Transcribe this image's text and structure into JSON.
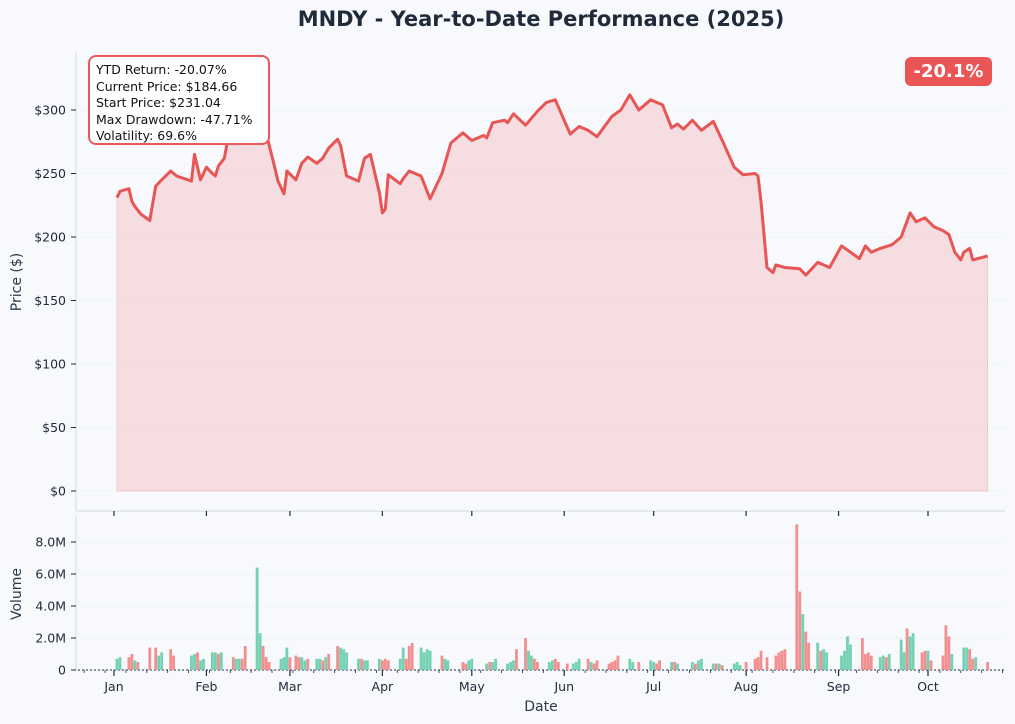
{
  "chart_data": [
    {
      "type": "area",
      "title": "MNDY - Year-to-Date Performance (2025)",
      "ylabel": "Price ($)",
      "ylim": [
        0,
        340
      ],
      "ytick_labels": [
        "$0",
        "$50",
        "$100",
        "$150",
        "$200",
        "$250",
        "$300"
      ],
      "yticks": [
        0,
        50,
        100,
        150,
        200,
        250,
        300
      ],
      "line_color": "#e85555",
      "fill_color": "#f4c6ca",
      "grid": true,
      "series": [
        {
          "x": [
            "2025-01-02",
            "2025-01-03",
            "2025-01-06",
            "2025-01-07",
            "2025-01-08",
            "2025-01-10",
            "2025-01-13",
            "2025-01-15",
            "2025-01-17",
            "2025-01-20",
            "2025-01-22",
            "2025-01-27",
            "2025-01-28",
            "2025-01-30",
            "2025-02-01",
            "2025-02-03",
            "2025-02-04",
            "2025-02-05",
            "2025-02-07",
            "2025-02-10",
            "2025-02-11",
            "2025-02-13",
            "2025-02-14",
            "2025-02-17",
            "2025-02-19",
            "2025-02-21",
            "2025-02-24",
            "2025-02-25",
            "2025-02-27",
            "2025-02-28",
            "2025-03-03",
            "2025-03-05",
            "2025-03-07",
            "2025-03-10",
            "2025-03-12",
            "2025-03-14",
            "2025-03-17",
            "2025-03-18",
            "2025-03-20",
            "2025-03-24",
            "2025-03-26",
            "2025-03-28",
            "2025-03-31",
            "2025-04-01",
            "2025-04-02",
            "2025-04-03",
            "2025-04-07",
            "2025-04-08",
            "2025-04-10",
            "2025-04-14",
            "2025-04-17",
            "2025-04-21",
            "2025-04-24",
            "2025-04-28",
            "2025-05-01",
            "2025-05-05",
            "2025-05-06",
            "2025-05-08",
            "2025-05-12",
            "2025-05-13",
            "2025-05-15",
            "2025-05-19",
            "2025-05-23",
            "2025-05-26",
            "2025-05-29",
            "2025-06-03",
            "2025-06-06",
            "2025-06-09",
            "2025-06-12",
            "2025-06-17",
            "2025-06-20",
            "2025-06-23",
            "2025-06-26",
            "2025-06-30",
            "2025-07-01",
            "2025-07-04",
            "2025-07-07",
            "2025-07-09",
            "2025-07-11",
            "2025-07-14",
            "2025-07-17",
            "2025-07-21",
            "2025-07-24",
            "2025-07-28",
            "2025-07-31",
            "2025-08-04",
            "2025-08-05",
            "2025-08-06",
            "2025-08-08",
            "2025-08-10",
            "2025-08-11",
            "2025-08-14",
            "2025-08-19",
            "2025-08-21",
            "2025-08-25",
            "2025-08-29",
            "2025-09-02",
            "2025-09-05",
            "2025-09-08",
            "2025-09-10",
            "2025-09-12",
            "2025-09-15",
            "2025-09-19",
            "2025-09-22",
            "2025-09-25",
            "2025-09-27",
            "2025-09-30",
            "2025-10-03",
            "2025-10-06",
            "2025-10-08",
            "2025-10-10",
            "2025-10-12",
            "2025-10-13",
            "2025-10-15",
            "2025-10-16",
            "2025-10-21"
          ],
          "y": [
            231.04,
            236,
            238,
            228,
            224,
            218,
            213,
            240,
            245,
            252,
            248,
            244,
            265,
            245,
            255,
            250,
            248,
            256,
            262,
            300,
            318,
            322,
            300,
            305,
            296,
            282,
            254,
            244,
            234,
            252,
            245,
            258,
            263,
            258,
            262,
            270,
            277,
            272,
            248,
            244,
            262,
            265,
            235,
            219,
            222,
            249,
            242,
            246,
            252,
            248,
            230,
            250,
            274,
            282,
            276,
            280,
            278,
            290,
            292,
            290,
            297,
            288,
            299,
            306,
            308,
            281,
            287,
            284,
            279,
            295,
            300,
            312,
            300,
            308,
            307,
            304,
            286,
            289,
            285,
            292,
            284,
            291,
            276,
            255,
            249,
            250,
            248,
            228,
            176,
            172,
            178,
            176,
            175,
            170,
            180,
            176,
            193,
            188,
            183,
            193,
            188,
            191,
            194,
            200,
            219,
            212,
            215,
            208,
            205,
            202,
            188,
            182,
            188,
            191,
            182,
            185
          ],
          "last_value": 184.66
        }
      ]
    },
    {
      "type": "bar",
      "ylabel": "Volume",
      "xlabel": "Date",
      "ylim": [
        0,
        9500000
      ],
      "ytick_labels": [
        "0",
        "2.0M",
        "4.0M",
        "6.0M",
        "8.0M"
      ],
      "yticks": [
        0,
        2000000,
        4000000,
        6000000,
        8000000
      ],
      "xtick_labels": [
        "Jan",
        "Feb",
        "Mar",
        "Apr",
        "May",
        "Jun",
        "Jul",
        "Aug",
        "Sep",
        "Oct"
      ],
      "up_color": "#6dcfad",
      "down_color": "#f18a8a",
      "series": [
        {
          "name": "volume",
          "x": [],
          "values": [],
          "direction": []
        }
      ]
    }
  ],
  "stats": {
    "ytd_return": "YTD Return: -20.07%",
    "current_price": "Current Price: $184.66",
    "start_price": "Start Price: $231.04",
    "max_drawdown": "Max Drawdown: -47.71%",
    "volatility": "Volatility: 69.6%"
  },
  "badge": "-20.1%"
}
